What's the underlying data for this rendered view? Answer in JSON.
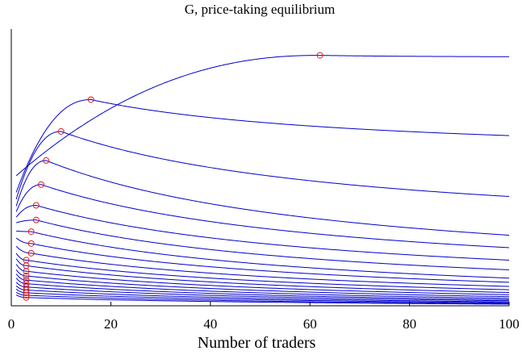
{
  "chart_data": {
    "type": "line",
    "title": "G, price-taking equilibrium",
    "xlabel": "Number of traders",
    "ylabel": "",
    "xlim": [
      1,
      100
    ],
    "xticks": [
      0,
      20,
      40,
      60,
      80,
      100
    ],
    "ylim": [
      0,
      1
    ],
    "grid": false,
    "legend": "none",
    "y_tick_labels_shown": false,
    "colors": {
      "line": "#0000cc",
      "marker": "#dd2020",
      "axis": "#000000"
    },
    "series": [
      {
        "peak_x": 62,
        "peak_y": 0.905,
        "start_y": 0.47,
        "end_y": 0.9
      },
      {
        "peak_x": 16,
        "peak_y": 0.745,
        "start_y": 0.41,
        "end_y": 0.615
      },
      {
        "peak_x": 10,
        "peak_y": 0.63,
        "start_y": 0.385,
        "end_y": 0.395
      },
      {
        "peak_x": 7,
        "peak_y": 0.525,
        "start_y": 0.36,
        "end_y": 0.255
      },
      {
        "peak_x": 6,
        "peak_y": 0.438,
        "start_y": 0.34,
        "end_y": 0.21
      },
      {
        "peak_x": 5,
        "peak_y": 0.363,
        "start_y": 0.32,
        "end_y": 0.165
      },
      {
        "peak_x": 5,
        "peak_y": 0.31,
        "start_y": 0.3,
        "end_y": 0.13
      },
      {
        "peak_x": 4,
        "peak_y": 0.268,
        "start_y": 0.27,
        "end_y": 0.1
      },
      {
        "peak_x": 4,
        "peak_y": 0.225,
        "start_y": 0.245,
        "end_y": 0.085
      },
      {
        "peak_x": 4,
        "peak_y": 0.19,
        "start_y": 0.215,
        "end_y": 0.07
      },
      {
        "peak_x": 3,
        "peak_y": 0.165,
        "start_y": 0.19,
        "end_y": 0.058
      },
      {
        "peak_x": 3,
        "peak_y": 0.145,
        "start_y": 0.17,
        "end_y": 0.048
      },
      {
        "peak_x": 3,
        "peak_y": 0.125,
        "start_y": 0.15,
        "end_y": 0.04
      },
      {
        "peak_x": 3,
        "peak_y": 0.108,
        "start_y": 0.13,
        "end_y": 0.033
      },
      {
        "peak_x": 3,
        "peak_y": 0.093,
        "start_y": 0.115,
        "end_y": 0.027
      },
      {
        "peak_x": 3,
        "peak_y": 0.08,
        "start_y": 0.1,
        "end_y": 0.022
      },
      {
        "peak_x": 3,
        "peak_y": 0.068,
        "start_y": 0.085,
        "end_y": 0.018
      },
      {
        "peak_x": 3,
        "peak_y": 0.057,
        "start_y": 0.072,
        "end_y": 0.014
      },
      {
        "peak_x": 3,
        "peak_y": 0.047,
        "start_y": 0.06,
        "end_y": 0.011
      },
      {
        "peak_x": 3,
        "peak_y": 0.038,
        "start_y": 0.049,
        "end_y": 0.008
      },
      {
        "peak_x": 3,
        "peak_y": 0.03,
        "start_y": 0.039,
        "end_y": 0.006
      }
    ]
  }
}
